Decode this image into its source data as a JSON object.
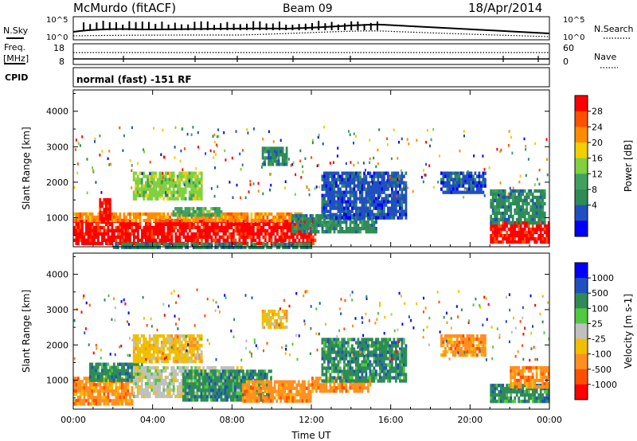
{
  "header": {
    "station": "McMurdo (fitACF)",
    "beam": "Beam 09",
    "date": "18/Apr/2014"
  },
  "noise_panel": {
    "left_label": "N.Sky",
    "right_label": "N.Search",
    "left_ticks": [
      "10^5",
      "10^0"
    ],
    "right_ticks": [
      "10^5",
      "10^0"
    ]
  },
  "freq_panel": {
    "left_label_line1": "Freq.",
    "left_label_line2": "[MHz]",
    "right_label": "Nave",
    "left_ticks": [
      "18",
      "8"
    ],
    "right_ticks": [
      "60",
      "0"
    ]
  },
  "cpid_panel": {
    "label": "CPID",
    "text": "normal (fast) -151 RF"
  },
  "chart_data": [
    {
      "type": "heatmap",
      "title": "Power",
      "xlabel": "",
      "ylabel": "Slant Range [km]",
      "x_ticks": [
        "00:00",
        "04:00",
        "08:00",
        "12:00",
        "16:00",
        "20:00",
        "00:00"
      ],
      "y_ticks": [
        "1000",
        "2000",
        "3000",
        "4000"
      ],
      "ylim": [
        180,
        4600
      ],
      "xlim_hours": [
        0,
        24
      ],
      "colorbar": {
        "label": "Power [dB]",
        "tick_labels": [
          "28",
          "24",
          "20",
          "16",
          "12",
          "8",
          "4"
        ],
        "colors": [
          "#ff0000",
          "#ff5000",
          "#ff8c00",
          "#f0d000",
          "#80d040",
          "#40a060",
          "#2e8b57",
          "#2050c0",
          "#0000ff"
        ]
      },
      "regions": [
        {
          "t0": 0.0,
          "t1": 12.2,
          "r0": 300,
          "r1": 950,
          "level": 0
        },
        {
          "t0": 0.0,
          "t1": 11.5,
          "r0": 950,
          "r1": 1150,
          "level": 2
        },
        {
          "t0": 1.3,
          "t1": 1.9,
          "r0": 900,
          "r1": 1550,
          "level": 0
        },
        {
          "t0": 5.0,
          "t1": 7.5,
          "r0": 1100,
          "r1": 1300,
          "level": 5
        },
        {
          "t0": 11.0,
          "t1": 15.3,
          "r0": 650,
          "r1": 1100,
          "level": 6
        },
        {
          "t0": 12.5,
          "t1": 16.8,
          "r0": 1000,
          "r1": 2300,
          "level": 7
        },
        {
          "t0": 9.5,
          "t1": 10.8,
          "r0": 2500,
          "r1": 3000,
          "level": 6
        },
        {
          "t0": 3.0,
          "t1": 6.5,
          "r0": 1500,
          "r1": 2300,
          "level": 4
        },
        {
          "t0": 21.0,
          "t1": 24.0,
          "r0": 300,
          "r1": 900,
          "level": 0
        },
        {
          "t0": 21.0,
          "t1": 23.8,
          "r0": 900,
          "r1": 1800,
          "level": 6
        },
        {
          "t0": 18.5,
          "t1": 20.8,
          "r0": 1700,
          "r1": 2300,
          "level": 7
        },
        {
          "t0": 2.0,
          "t1": 12.0,
          "r0": 180,
          "r1": 300,
          "level": 6
        }
      ]
    },
    {
      "type": "heatmap",
      "title": "Velocity",
      "xlabel": "Time UT",
      "ylabel": "Slant Range [km]",
      "x_ticks": [
        "00:00",
        "04:00",
        "08:00",
        "12:00",
        "16:00",
        "20:00",
        "00:00"
      ],
      "y_ticks": [
        "1000",
        "2000",
        "3000",
        "4000"
      ],
      "ylim": [
        180,
        4600
      ],
      "xlim_hours": [
        0,
        24
      ],
      "colorbar": {
        "label": "Velocity [m s-1]",
        "tick_labels": [
          "1000",
          "500",
          "100",
          "25",
          "-25",
          "-100",
          "-500",
          "-1000"
        ],
        "colors": [
          "#0000ff",
          "#2050c0",
          "#2e8b57",
          "#50c840",
          "#c0c0c0",
          "#f0c000",
          "#ff9020",
          "#ff5000",
          "#ff0000"
        ]
      },
      "regions": [
        {
          "t0": 0.0,
          "t1": 3.0,
          "r0": 300,
          "r1": 1100,
          "level": 6
        },
        {
          "t0": 0.8,
          "t1": 3.5,
          "r0": 1000,
          "r1": 1500,
          "level": 2
        },
        {
          "t0": 3.0,
          "t1": 8.5,
          "r0": 500,
          "r1": 1400,
          "level": 4
        },
        {
          "t0": 5.5,
          "t1": 10.0,
          "r0": 400,
          "r1": 1300,
          "level": 2
        },
        {
          "t0": 8.5,
          "t1": 12.0,
          "r0": 400,
          "r1": 1000,
          "level": 6
        },
        {
          "t0": 12.0,
          "t1": 15.0,
          "r0": 700,
          "r1": 1100,
          "level": 6
        },
        {
          "t0": 12.5,
          "t1": 16.8,
          "r0": 1000,
          "r1": 2200,
          "level": 2
        },
        {
          "t0": 9.5,
          "t1": 10.8,
          "r0": 2500,
          "r1": 3000,
          "level": 5
        },
        {
          "t0": 3.0,
          "t1": 6.5,
          "r0": 1500,
          "r1": 2300,
          "level": 5
        },
        {
          "t0": 21.0,
          "t1": 24.0,
          "r0": 400,
          "r1": 900,
          "level": 2
        },
        {
          "t0": 22.0,
          "t1": 24.0,
          "r0": 800,
          "r1": 1400,
          "level": 6
        },
        {
          "t0": 18.5,
          "t1": 20.8,
          "r0": 1700,
          "r1": 2300,
          "level": 6
        }
      ]
    }
  ]
}
